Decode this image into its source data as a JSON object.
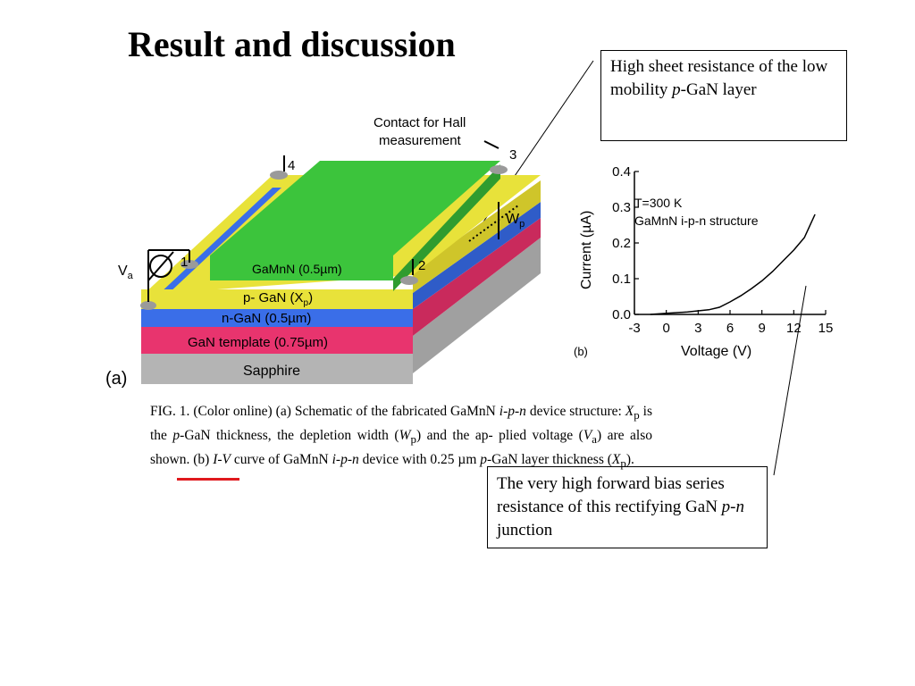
{
  "slide": {
    "title": "Result and discussion"
  },
  "callouts": {
    "top": {
      "pre": "High sheet resistance of the low mobility ",
      "italic": "p",
      "post": "-GaN layer"
    },
    "bottom": {
      "pre": "The very high forward bias series resistance of this rectifying GaN ",
      "italic": "p-n",
      "post": " junction"
    }
  },
  "schematic": {
    "panel_label": "(a)",
    "contact_label_line1": "Contact for Hall",
    "contact_label_line2": "measurement",
    "layers": {
      "top": "GaMnN (0.5µm)",
      "pgan": "p- GaN (X",
      "pgan_sub": "p",
      "pgan_close": ")",
      "ngan": "n-GaN (0.5µm)",
      "template": "GaN template (0.75µm)",
      "substrate": "Sapphire"
    },
    "contacts": [
      "1",
      "2",
      "3",
      "4"
    ],
    "voltage_label": "V",
    "voltage_sub": "a",
    "depletion_label": "W",
    "depletion_sub": "p",
    "colors": {
      "gamnn": "#3cc43c",
      "pgan": "#e8e23a",
      "ngan": "#3a6ee8",
      "template": "#e8346e",
      "sapphire": "#b4b4b4"
    }
  },
  "chart_data": {
    "type": "line",
    "panel_label": "(b)",
    "annotation_line1": "T=300 K",
    "annotation_line2": "GaMnN i-p-n structure",
    "xlabel": "Voltage (V)",
    "ylabel": "Current (µA)",
    "xlim": [
      -3,
      15
    ],
    "ylim": [
      0,
      0.4
    ],
    "xticks": [
      "-3",
      "0",
      "3",
      "6",
      "9",
      "12",
      "15"
    ],
    "yticks": [
      "0.0",
      "0.1",
      "0.2",
      "0.3",
      "0.4"
    ],
    "series": [
      {
        "x": [
          -1.5,
          0,
          2,
          4,
          5,
          6,
          7,
          8,
          9,
          10,
          11,
          12,
          13,
          14
        ],
        "values": [
          0.0,
          0.003,
          0.007,
          0.013,
          0.02,
          0.035,
          0.052,
          0.072,
          0.094,
          0.12,
          0.15,
          0.18,
          0.215,
          0.28
        ]
      }
    ]
  },
  "caption": {
    "fig_label": "FIG. 1.",
    "t1": "  (Color online) (a) Schematic of the fabricated GaMnN ",
    "i1": "i-p-n",
    "t2": " device structure: ",
    "i2": "X",
    "s1": "p",
    "t3": " is the ",
    "i3": "p",
    "t4": "-GaN thickness, the depletion width (",
    "i4": "W",
    "s2": "p",
    "t5": ") and the ap- plied voltage (",
    "i5": "V",
    "s3": "a",
    "t6": ") are also shown. (b) ",
    "i6": "I-V",
    "t7": " curve of GaMnN ",
    "i7": "i-p-n",
    "t8": " device with 0.25 µm ",
    "i8": "p",
    "t9": "-GaN layer thickness (",
    "i9": "X",
    "s4": "p",
    "t10": ")."
  }
}
